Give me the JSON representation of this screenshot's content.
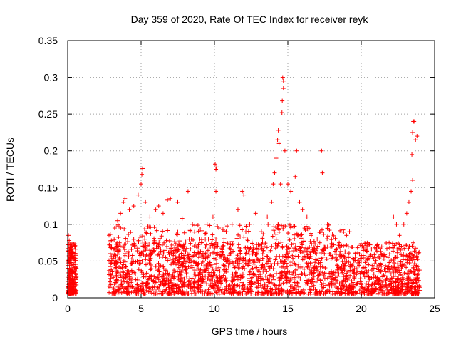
{
  "chart_data": {
    "type": "scatter",
    "title": "Day 359 of 2020, Rate Of TEC Index for receiver reyk",
    "xlabel": "GPS time / hours",
    "ylabel": "ROTI / TECUs",
    "xlim": [
      0,
      25
    ],
    "ylim": [
      0,
      0.35
    ],
    "x_ticks": [
      0,
      5,
      10,
      15,
      20,
      25
    ],
    "y_ticks": [
      0,
      0.05,
      0.1,
      0.15,
      0.2,
      0.25,
      0.3,
      0.35
    ],
    "x_tick_labels": [
      "0",
      "5",
      "10",
      "15",
      "20",
      "25"
    ],
    "y_tick_labels": [
      "0",
      "0.05",
      "0.1",
      "0.15",
      "0.2",
      "0.25",
      "0.3",
      "0.35"
    ],
    "grid": true,
    "marker": "+",
    "marker_color": "#ff0000",
    "data_gap_hours": [
      0.6,
      2.8
    ],
    "series": [
      {
        "name": "ROTI",
        "points": [
          [
            0.05,
            0.085
          ],
          [
            0.1,
            0.078
          ],
          [
            0.15,
            0.072
          ],
          [
            0.2,
            0.065
          ],
          [
            0.25,
            0.06
          ],
          [
            0.3,
            0.055
          ],
          [
            0.12,
            0.04
          ],
          [
            0.22,
            0.03
          ],
          [
            0.3,
            0.02
          ],
          [
            0.4,
            0.035
          ],
          [
            0.45,
            0.025
          ],
          [
            3.2,
            0.095
          ],
          [
            3.4,
            0.105
          ],
          [
            3.6,
            0.115
          ],
          [
            3.8,
            0.13
          ],
          [
            3.9,
            0.135
          ],
          [
            4.2,
            0.12
          ],
          [
            4.5,
            0.125
          ],
          [
            4.8,
            0.14
          ],
          [
            5.0,
            0.155
          ],
          [
            5.05,
            0.168
          ],
          [
            5.1,
            0.176
          ],
          [
            5.3,
            0.13
          ],
          [
            5.6,
            0.11
          ],
          [
            6.0,
            0.12
          ],
          [
            6.2,
            0.125
          ],
          [
            6.5,
            0.115
          ],
          [
            6.8,
            0.133
          ],
          [
            7.0,
            0.135
          ],
          [
            7.5,
            0.13
          ],
          [
            7.8,
            0.108
          ],
          [
            8.2,
            0.145
          ],
          [
            8.5,
            0.1
          ],
          [
            9.0,
            0.08
          ],
          [
            9.5,
            0.1
          ],
          [
            9.9,
            0.11
          ],
          [
            10.05,
            0.182
          ],
          [
            10.1,
            0.175
          ],
          [
            10.15,
            0.178
          ],
          [
            10.1,
            0.145
          ],
          [
            10.3,
            0.095
          ],
          [
            10.8,
            0.09
          ],
          [
            11.2,
            0.1
          ],
          [
            11.6,
            0.12
          ],
          [
            11.9,
            0.145
          ],
          [
            12.0,
            0.14
          ],
          [
            12.4,
            0.1
          ],
          [
            12.8,
            0.115
          ],
          [
            13.2,
            0.09
          ],
          [
            13.6,
            0.11
          ],
          [
            13.9,
            0.13
          ],
          [
            14.0,
            0.155
          ],
          [
            14.1,
            0.17
          ],
          [
            14.2,
            0.19
          ],
          [
            14.3,
            0.215
          ],
          [
            14.35,
            0.228
          ],
          [
            14.4,
            0.21
          ],
          [
            14.5,
            0.155
          ],
          [
            14.6,
            0.252
          ],
          [
            14.62,
            0.268
          ],
          [
            14.65,
            0.3
          ],
          [
            14.7,
            0.295
          ],
          [
            14.7,
            0.285
          ],
          [
            14.8,
            0.2
          ],
          [
            15.0,
            0.155
          ],
          [
            15.2,
            0.145
          ],
          [
            15.5,
            0.165
          ],
          [
            15.6,
            0.2
          ],
          [
            15.8,
            0.13
          ],
          [
            16.0,
            0.12
          ],
          [
            16.3,
            0.11
          ],
          [
            16.6,
            0.085
          ],
          [
            17.0,
            0.08
          ],
          [
            17.3,
            0.2
          ],
          [
            17.35,
            0.17
          ],
          [
            17.7,
            0.1
          ],
          [
            18.0,
            0.07
          ],
          [
            18.5,
            0.075
          ],
          [
            19.0,
            0.085
          ],
          [
            19.2,
            0.09
          ],
          [
            19.5,
            0.05
          ],
          [
            20.0,
            0.05
          ],
          [
            20.5,
            0.045
          ],
          [
            21.0,
            0.05
          ],
          [
            21.5,
            0.06
          ],
          [
            21.9,
            0.075
          ],
          [
            22.2,
            0.11
          ],
          [
            22.4,
            0.1
          ],
          [
            22.6,
            0.085
          ],
          [
            22.9,
            0.1
          ],
          [
            23.1,
            0.115
          ],
          [
            23.25,
            0.13
          ],
          [
            23.4,
            0.145
          ],
          [
            23.5,
            0.16
          ],
          [
            23.45,
            0.195
          ],
          [
            23.5,
            0.225
          ],
          [
            23.55,
            0.24
          ],
          [
            23.6,
            0.24
          ],
          [
            23.7,
            0.215
          ],
          [
            23.8,
            0.22
          ]
        ]
      }
    ]
  }
}
